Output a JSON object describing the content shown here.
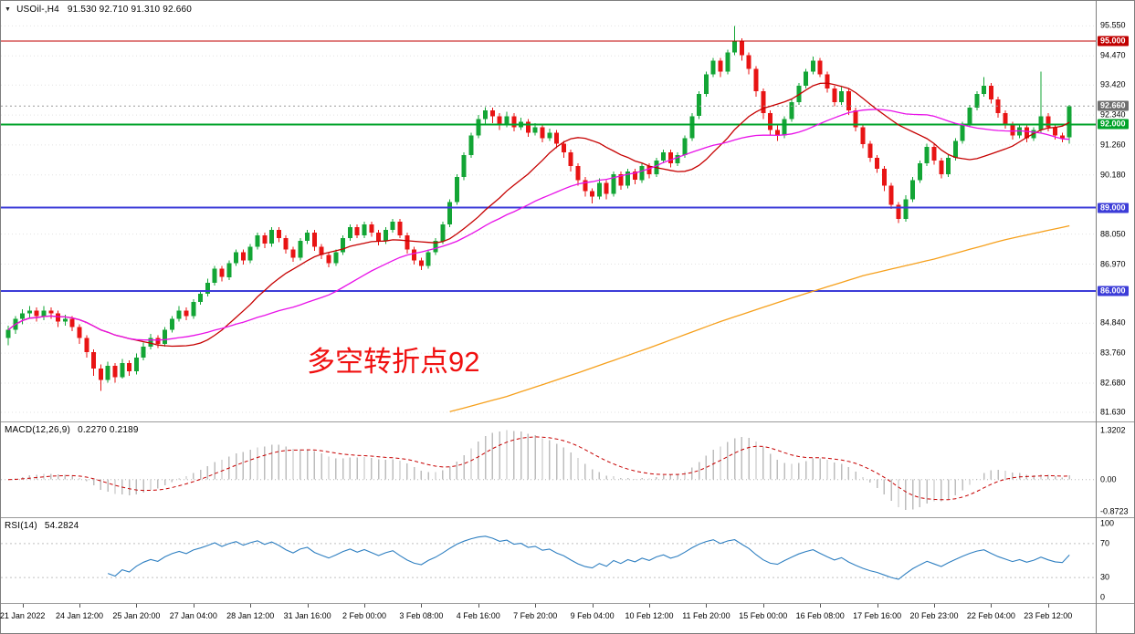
{
  "window": {
    "symbol_period": "USOil-,H4",
    "ohlc": "91.530 92.710 91.310 92.660"
  },
  "annotation": {
    "text": "多空转折点92",
    "color": "#f01010"
  },
  "levels": [
    {
      "price": 95.0,
      "label": "95.000",
      "color": "#c00000",
      "width": 1
    },
    {
      "price": 92.0,
      "label": "92.000",
      "color": "#00a32a",
      "width": 2
    },
    {
      "price": 89.0,
      "label": "89.000",
      "color": "#3c3cd8",
      "width": 2
    },
    {
      "price": 86.0,
      "label": "86.000",
      "color": "#3c3cd8",
      "width": 2
    }
  ],
  "current_price": {
    "value": 92.66,
    "label": "92.660",
    "box_color": "#6e6e6e"
  },
  "price_axis": {
    "range": [
      81.3,
      96.45
    ],
    "ticks": [
      {
        "value": 95.55,
        "label": "95.550"
      },
      {
        "value": 94.47,
        "label": "94.470"
      },
      {
        "value": 93.42,
        "label": "93.420"
      },
      {
        "value": 92.34,
        "label": "92.340"
      },
      {
        "value": 91.26,
        "label": "91.260"
      },
      {
        "value": 90.18,
        "label": "90.180"
      },
      {
        "value": 88.05,
        "label": "88.050"
      },
      {
        "value": 86.97,
        "label": "86.970"
      },
      {
        "value": 84.84,
        "label": "84.840"
      },
      {
        "value": 83.76,
        "label": "83.760"
      },
      {
        "value": 82.68,
        "label": "82.680"
      },
      {
        "value": 81.63,
        "label": "81.630"
      }
    ]
  },
  "time_axis": {
    "labels": [
      {
        "i": 2,
        "t": "21 Jan 2022"
      },
      {
        "i": 10,
        "t": "24 Jan 12:00"
      },
      {
        "i": 18,
        "t": "25 Jan 20:00"
      },
      {
        "i": 26,
        "t": "27 Jan 04:00"
      },
      {
        "i": 34,
        "t": "28 Jan 12:00"
      },
      {
        "i": 42,
        "t": "31 Jan 16:00"
      },
      {
        "i": 50,
        "t": "2 Feb 00:00"
      },
      {
        "i": 58,
        "t": "3 Feb 08:00"
      },
      {
        "i": 66,
        "t": "4 Feb 16:00"
      },
      {
        "i": 74,
        "t": "7 Feb 20:00"
      },
      {
        "i": 82,
        "t": "9 Feb 04:00"
      },
      {
        "i": 90,
        "t": "10 Feb 12:00"
      },
      {
        "i": 98,
        "t": "11 Feb 20:00"
      },
      {
        "i": 106,
        "t": "15 Feb 00:00"
      },
      {
        "i": 114,
        "t": "16 Feb 08:00"
      },
      {
        "i": 122,
        "t": "17 Feb 16:00"
      },
      {
        "i": 130,
        "t": "20 Feb 23:00"
      },
      {
        "i": 138,
        "t": "22 Feb 04:00"
      },
      {
        "i": 146,
        "t": "23 Feb 12:00"
      }
    ]
  },
  "indicators": {
    "macd": {
      "label": "MACD(12,26,9)",
      "values_text": "0.2270 0.2189",
      "fast": 12,
      "slow": 26,
      "signal": 9,
      "range": [
        -1.02,
        1.55
      ],
      "axis": [
        {
          "v": 1.3202,
          "t": "1.3202"
        },
        {
          "v": 0,
          "t": "0.00"
        },
        {
          "v": -0.8723,
          "t": "-0.8723"
        }
      ]
    },
    "rsi": {
      "label": "RSI(14)",
      "value_text": "54.2824",
      "period": 14,
      "range": [
        0,
        100
      ],
      "levels": [
        70,
        30
      ],
      "axis": [
        {
          "v": 100,
          "t": "100"
        },
        {
          "v": 70,
          "t": "70"
        },
        {
          "v": 30,
          "t": "30"
        },
        {
          "v": 0,
          "t": "0"
        }
      ]
    }
  },
  "colors": {
    "up": "#13a535",
    "down": "#e81414",
    "ma_fast": "#c60000",
    "ma_mid": "#e812e8",
    "ma_slow": "#f6a01c",
    "macd_hist": "#bdbdbd",
    "macd_signal": "#c60000",
    "rsi": "#2e7fc1",
    "grid": "#e2e2e2",
    "bid_line": "#9a9a9a"
  },
  "chart_data": {
    "type": "candlestick",
    "symbol": "USOil-",
    "timeframe": "H4",
    "title": "USOil-,H4 91.530 92.710 91.310 92.660",
    "ylim": [
      81.3,
      96.45
    ],
    "legend_position": "none",
    "grid": true,
    "candles": [
      [
        84.3,
        84.75,
        84.05,
        84.6
      ],
      [
        84.6,
        85.1,
        84.45,
        85.0
      ],
      [
        85.0,
        85.35,
        84.8,
        85.2
      ],
      [
        85.2,
        85.45,
        85.0,
        85.3
      ],
      [
        85.3,
        85.4,
        84.9,
        85.1
      ],
      [
        85.1,
        85.45,
        84.95,
        85.3
      ],
      [
        85.3,
        85.4,
        85.0,
        85.2
      ],
      [
        85.2,
        85.3,
        84.7,
        84.9
      ],
      [
        84.9,
        85.15,
        84.75,
        85.0
      ],
      [
        85.0,
        85.1,
        84.55,
        84.7
      ],
      [
        84.7,
        84.8,
        84.1,
        84.3
      ],
      [
        84.3,
        84.4,
        83.6,
        83.8
      ],
      [
        83.8,
        83.9,
        82.95,
        83.2
      ],
      [
        83.2,
        83.35,
        82.4,
        82.8
      ],
      [
        82.8,
        83.45,
        82.7,
        83.3
      ],
      [
        83.3,
        83.4,
        82.7,
        82.9
      ],
      [
        82.9,
        83.55,
        82.85,
        83.4
      ],
      [
        83.4,
        83.5,
        82.95,
        83.1
      ],
      [
        83.1,
        83.75,
        83.0,
        83.6
      ],
      [
        83.6,
        84.15,
        83.5,
        84.0
      ],
      [
        84.0,
        84.45,
        83.9,
        84.3
      ],
      [
        84.3,
        84.4,
        83.95,
        84.1
      ],
      [
        84.1,
        84.7,
        84.0,
        84.6
      ],
      [
        84.6,
        85.1,
        84.5,
        85.0
      ],
      [
        85.0,
        85.45,
        84.9,
        85.3
      ],
      [
        85.3,
        85.4,
        84.95,
        85.1
      ],
      [
        85.1,
        85.7,
        85.0,
        85.6
      ],
      [
        85.6,
        86.0,
        85.5,
        85.9
      ],
      [
        85.9,
        86.45,
        85.8,
        86.3
      ],
      [
        86.3,
        86.9,
        86.2,
        86.8
      ],
      [
        86.8,
        86.9,
        86.35,
        86.5
      ],
      [
        86.5,
        87.1,
        86.4,
        87.0
      ],
      [
        87.0,
        87.5,
        86.9,
        87.4
      ],
      [
        87.4,
        87.5,
        86.95,
        87.1
      ],
      [
        87.1,
        87.7,
        87.0,
        87.6
      ],
      [
        87.6,
        88.1,
        87.5,
        88.0
      ],
      [
        88.0,
        88.1,
        87.55,
        87.7
      ],
      [
        87.7,
        88.3,
        87.6,
        88.2
      ],
      [
        88.2,
        88.3,
        87.75,
        87.9
      ],
      [
        87.9,
        88.0,
        87.35,
        87.5
      ],
      [
        87.5,
        87.6,
        87.05,
        87.2
      ],
      [
        87.2,
        87.9,
        87.1,
        87.8
      ],
      [
        87.8,
        88.2,
        87.7,
        88.1
      ],
      [
        88.1,
        88.2,
        87.45,
        87.6
      ],
      [
        87.6,
        87.7,
        87.15,
        87.3
      ],
      [
        87.3,
        87.4,
        86.85,
        87.0
      ],
      [
        87.0,
        87.5,
        86.9,
        87.4
      ],
      [
        87.4,
        88.0,
        87.3,
        87.9
      ],
      [
        87.9,
        88.4,
        87.8,
        88.3
      ],
      [
        88.3,
        88.4,
        87.9,
        88.0
      ],
      [
        88.0,
        88.5,
        87.9,
        88.4
      ],
      [
        88.4,
        88.5,
        87.95,
        88.1
      ],
      [
        88.1,
        88.2,
        87.65,
        87.8
      ],
      [
        87.8,
        88.3,
        87.7,
        88.2
      ],
      [
        88.2,
        88.6,
        88.1,
        88.5
      ],
      [
        88.5,
        88.6,
        87.9,
        88.0
      ],
      [
        88.0,
        88.1,
        87.35,
        87.5
      ],
      [
        87.5,
        87.6,
        86.95,
        87.1
      ],
      [
        87.1,
        87.2,
        86.75,
        86.9
      ],
      [
        86.9,
        87.5,
        86.8,
        87.4
      ],
      [
        87.4,
        87.9,
        87.3,
        87.8
      ],
      [
        87.8,
        88.5,
        87.7,
        88.4
      ],
      [
        88.4,
        89.3,
        88.3,
        89.2
      ],
      [
        89.2,
        90.2,
        89.1,
        90.1
      ],
      [
        90.1,
        91.0,
        90.0,
        90.9
      ],
      [
        90.9,
        91.7,
        90.8,
        91.6
      ],
      [
        91.6,
        92.35,
        91.5,
        92.2
      ],
      [
        92.2,
        92.62,
        92.0,
        92.5
      ],
      [
        92.5,
        92.6,
        92.05,
        92.3
      ],
      [
        92.3,
        92.4,
        91.8,
        92.0
      ],
      [
        92.0,
        92.45,
        91.9,
        92.3
      ],
      [
        92.3,
        92.4,
        91.75,
        91.9
      ],
      [
        91.9,
        92.25,
        91.8,
        92.1
      ],
      [
        92.1,
        92.2,
        91.55,
        91.7
      ],
      [
        91.7,
        92.05,
        91.6,
        91.9
      ],
      [
        91.9,
        92.0,
        91.35,
        91.5
      ],
      [
        91.5,
        91.85,
        91.4,
        91.7
      ],
      [
        91.7,
        91.8,
        91.15,
        91.3
      ],
      [
        91.3,
        91.4,
        90.8,
        91.0
      ],
      [
        91.0,
        91.1,
        90.3,
        90.5
      ],
      [
        90.5,
        90.6,
        89.8,
        90.0
      ],
      [
        90.0,
        90.1,
        89.4,
        89.6
      ],
      [
        89.6,
        89.7,
        89.15,
        89.4
      ],
      [
        89.4,
        90.05,
        89.3,
        89.9
      ],
      [
        89.9,
        90.0,
        89.3,
        89.5
      ],
      [
        89.5,
        90.3,
        89.4,
        90.2
      ],
      [
        90.2,
        90.3,
        89.65,
        89.8
      ],
      [
        89.8,
        90.4,
        89.7,
        90.3
      ],
      [
        90.3,
        90.4,
        89.85,
        90.0
      ],
      [
        90.0,
        90.6,
        89.9,
        90.5
      ],
      [
        90.5,
        90.6,
        90.05,
        90.2
      ],
      [
        90.2,
        90.8,
        90.1,
        90.7
      ],
      [
        90.7,
        91.1,
        90.6,
        91.0
      ],
      [
        91.0,
        91.1,
        90.45,
        90.6
      ],
      [
        90.6,
        91.0,
        90.5,
        90.9
      ],
      [
        90.9,
        91.6,
        90.8,
        91.5
      ],
      [
        91.5,
        92.4,
        91.4,
        92.3
      ],
      [
        92.3,
        93.2,
        92.2,
        93.1
      ],
      [
        93.1,
        93.9,
        93.0,
        93.8
      ],
      [
        93.8,
        94.4,
        93.7,
        94.3
      ],
      [
        94.3,
        94.4,
        93.7,
        93.9
      ],
      [
        93.9,
        94.7,
        93.8,
        94.6
      ],
      [
        94.6,
        95.55,
        94.5,
        95.0
      ],
      [
        95.0,
        95.1,
        94.3,
        94.5
      ],
      [
        94.5,
        94.6,
        93.8,
        94.0
      ],
      [
        94.0,
        94.1,
        93.0,
        93.2
      ],
      [
        93.2,
        93.3,
        92.2,
        92.4
      ],
      [
        92.4,
        92.5,
        91.6,
        91.8
      ],
      [
        91.8,
        92.0,
        91.4,
        91.6
      ],
      [
        91.6,
        92.3,
        91.5,
        92.2
      ],
      [
        92.2,
        92.9,
        92.1,
        92.8
      ],
      [
        92.8,
        93.5,
        92.7,
        93.4
      ],
      [
        93.4,
        94.0,
        93.3,
        93.9
      ],
      [
        93.9,
        94.45,
        93.8,
        94.3
      ],
      [
        94.3,
        94.4,
        93.7,
        93.8
      ],
      [
        93.8,
        93.9,
        93.15,
        93.3
      ],
      [
        93.3,
        93.4,
        92.65,
        92.8
      ],
      [
        92.8,
        93.35,
        92.7,
        93.2
      ],
      [
        93.2,
        93.3,
        92.35,
        92.5
      ],
      [
        92.5,
        92.6,
        91.75,
        91.9
      ],
      [
        91.9,
        92.0,
        91.15,
        91.3
      ],
      [
        91.3,
        91.4,
        90.65,
        90.8
      ],
      [
        90.8,
        90.9,
        90.25,
        90.4
      ],
      [
        90.4,
        90.5,
        89.6,
        89.8
      ],
      [
        89.8,
        89.9,
        88.95,
        89.1
      ],
      [
        89.1,
        89.2,
        88.45,
        88.6
      ],
      [
        88.6,
        89.45,
        88.5,
        89.3
      ],
      [
        89.3,
        90.1,
        89.2,
        90.0
      ],
      [
        90.0,
        90.7,
        89.9,
        90.6
      ],
      [
        90.6,
        91.3,
        90.5,
        91.2
      ],
      [
        91.2,
        91.3,
        90.55,
        90.7
      ],
      [
        90.7,
        90.8,
        90.05,
        90.2
      ],
      [
        90.2,
        90.9,
        90.1,
        90.8
      ],
      [
        90.8,
        91.5,
        90.7,
        91.4
      ],
      [
        91.4,
        92.1,
        91.3,
        92.0
      ],
      [
        92.0,
        92.7,
        91.9,
        92.6
      ],
      [
        92.6,
        93.2,
        92.5,
        93.1
      ],
      [
        93.1,
        93.7,
        93.0,
        93.4
      ],
      [
        93.4,
        93.5,
        92.75,
        92.9
      ],
      [
        92.9,
        93.0,
        92.25,
        92.4
      ],
      [
        92.4,
        92.5,
        91.85,
        92.0
      ],
      [
        92.0,
        92.1,
        91.45,
        91.6
      ],
      [
        91.6,
        92.0,
        91.5,
        91.9
      ],
      [
        91.9,
        92.0,
        91.35,
        91.5
      ],
      [
        91.5,
        91.9,
        91.4,
        91.8
      ],
      [
        91.8,
        93.9,
        91.7,
        92.3
      ],
      [
        92.3,
        92.4,
        91.75,
        91.9
      ],
      [
        91.9,
        92.0,
        91.45,
        91.6
      ],
      [
        91.6,
        91.7,
        91.35,
        91.5
      ],
      [
        91.53,
        92.71,
        91.31,
        92.66
      ]
    ],
    "overlays": [
      {
        "name": "ma-fast",
        "type": "sma",
        "period": 18,
        "color": "#c60000"
      },
      {
        "name": "ma-mid",
        "type": "sma",
        "period": 34,
        "color": "#e812e8"
      },
      {
        "name": "ma-slow",
        "type": "anchors",
        "color": "#f6a01c",
        "points": [
          [
            62,
            81.65
          ],
          [
            70,
            82.2
          ],
          [
            80,
            83.05
          ],
          [
            90,
            83.95
          ],
          [
            100,
            84.9
          ],
          [
            110,
            85.75
          ],
          [
            120,
            86.55
          ],
          [
            130,
            87.15
          ],
          [
            140,
            87.85
          ],
          [
            149,
            88.35
          ]
        ]
      }
    ]
  }
}
